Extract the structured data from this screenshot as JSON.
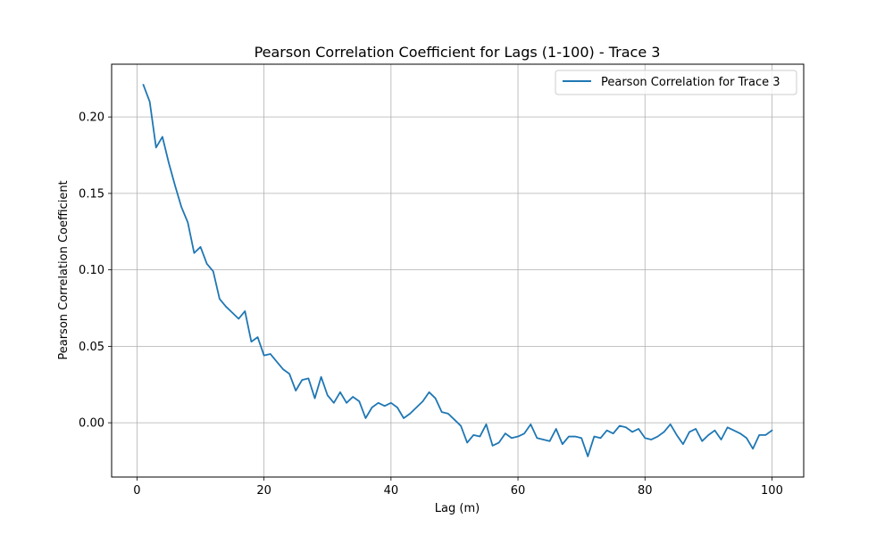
{
  "chart_data": {
    "type": "line",
    "title": "Pearson Correlation Coefficient for Lags (1-100) - Trace 3",
    "xlabel": "Lag (m)",
    "ylabel": "Pearson Correlation Coefficient",
    "xlim": [
      -4,
      105
    ],
    "ylim": [
      -0.0355,
      0.2345
    ],
    "xticks": [
      0,
      20,
      40,
      60,
      80,
      100
    ],
    "xtick_labels": [
      "0",
      "20",
      "40",
      "60",
      "80",
      "100"
    ],
    "yticks": [
      0.0,
      0.05,
      0.1,
      0.15,
      0.2
    ],
    "ytick_labels": [
      "0.00",
      "0.05",
      "0.10",
      "0.15",
      "0.20"
    ],
    "grid": true,
    "legend_position": "top-right",
    "series": [
      {
        "name": "Pearson Correlation for Trace 3",
        "color": "#1f77b4",
        "x": [
          1,
          2,
          3,
          4,
          5,
          6,
          7,
          8,
          9,
          10,
          11,
          12,
          13,
          14,
          15,
          16,
          17,
          18,
          19,
          20,
          21,
          22,
          23,
          24,
          25,
          26,
          27,
          28,
          29,
          30,
          31,
          32,
          33,
          34,
          35,
          36,
          37,
          38,
          39,
          40,
          41,
          42,
          43,
          44,
          45,
          46,
          47,
          48,
          49,
          50,
          51,
          52,
          53,
          54,
          55,
          56,
          57,
          58,
          59,
          60,
          61,
          62,
          63,
          64,
          65,
          66,
          67,
          68,
          69,
          70,
          71,
          72,
          73,
          74,
          75,
          76,
          77,
          78,
          79,
          80,
          81,
          82,
          83,
          84,
          85,
          86,
          87,
          88,
          89,
          90,
          91,
          92,
          93,
          94,
          95,
          96,
          97,
          98,
          99,
          100
        ],
        "y": [
          0.221,
          0.21,
          0.18,
          0.187,
          0.17,
          0.155,
          0.141,
          0.131,
          0.111,
          0.115,
          0.104,
          0.099,
          0.081,
          0.076,
          0.072,
          0.068,
          0.073,
          0.053,
          0.056,
          0.044,
          0.045,
          0.04,
          0.035,
          0.032,
          0.021,
          0.028,
          0.029,
          0.016,
          0.03,
          0.018,
          0.013,
          0.02,
          0.013,
          0.017,
          0.014,
          0.003,
          0.01,
          0.013,
          0.011,
          0.013,
          0.01,
          0.003,
          0.006,
          0.01,
          0.014,
          0.02,
          0.016,
          0.007,
          0.006,
          0.002,
          -0.002,
          -0.013,
          -0.008,
          -0.009,
          -0.001,
          -0.015,
          -0.013,
          -0.007,
          -0.01,
          -0.009,
          -0.007,
          -0.001,
          -0.01,
          -0.011,
          -0.012,
          -0.004,
          -0.014,
          -0.009,
          -0.009,
          -0.01,
          -0.022,
          -0.009,
          -0.01,
          -0.005,
          -0.007,
          -0.002,
          -0.003,
          -0.006,
          -0.004,
          -0.01,
          -0.011,
          -0.009,
          -0.006,
          -0.001,
          -0.008,
          -0.014,
          -0.006,
          -0.004,
          -0.012,
          -0.008,
          -0.005,
          -0.011,
          -0.003,
          -0.005,
          -0.007,
          -0.01,
          -0.017,
          -0.008,
          -0.008,
          -0.005
        ]
      }
    ]
  }
}
